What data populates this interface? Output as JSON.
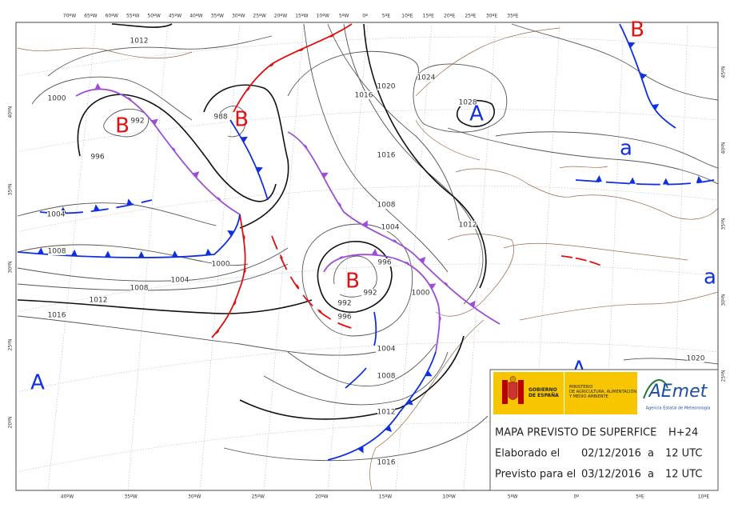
{
  "top_axis": [
    "70ºW",
    "65ºW",
    "60ºW",
    "55ºW",
    "50ºW",
    "45ºW",
    "40ºW",
    "35ºW",
    "30ºW",
    "25ºW",
    "20ºW",
    "15ºW",
    "10ºW",
    "5ºW",
    "0º",
    "5ºE",
    "10ºE",
    "15ºE",
    "20ºE",
    "25ºE",
    "30ºE",
    "35ºE"
  ],
  "bottom_axis": [
    "40ºW",
    "35ºW",
    "30ºW",
    "25ºW",
    "20ºW",
    "15ºW",
    "10ºW",
    "5ºW",
    "0º",
    "5ºE",
    "10ºE"
  ],
  "left_axis": [
    "40ºN",
    "35ºN",
    "30ºN",
    "25ºN",
    "20ºN"
  ],
  "right_axis": [
    "45ºN",
    "40ºN",
    "35ºN",
    "30ºN",
    "25ºN"
  ],
  "isobar_labels": [
    "1012",
    "1000",
    "992",
    "988",
    "996",
    "1004",
    "1008",
    "1000",
    "1004",
    "1008",
    "1012",
    "1016",
    "1020",
    "1024",
    "1028",
    "1016",
    "1016",
    "1008",
    "1004",
    "1012",
    "996",
    "992",
    "992",
    "996",
    "1000",
    "1004",
    "1008",
    "1012",
    "1016",
    "1020"
  ],
  "pressure_centers": [
    "B",
    "B",
    "B",
    "A",
    "a",
    "B",
    "a",
    "A",
    "A"
  ],
  "logos": {
    "government": "GOBIERNO DE ESPAÑA",
    "ministry": [
      "MINISTERIO",
      "DE AGRICULTURA, ALIMENTACIÓN",
      "Y MEDIO AMBIENTE"
    ],
    "agency": "AEmet",
    "agency_full": "Agencia Estatal de Meteorología"
  },
  "info": {
    "title": "MAPA PREVISTO DE SUPERFICE",
    "lead": "H+24",
    "made_label": "Elaborado el",
    "made_date": "02/12/2016",
    "made_at": "a",
    "made_time": "12 UTC",
    "valid_label": "Previsto para el",
    "valid_date": "03/12/2016",
    "valid_at": "a",
    "valid_time": "12 UTC"
  }
}
